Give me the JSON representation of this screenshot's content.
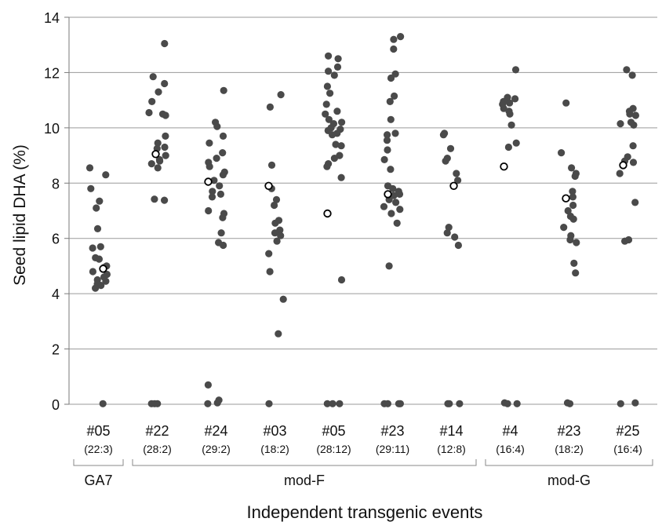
{
  "chart_data": {
    "type": "scatter",
    "title": "",
    "ylabel": "Seed lipid DHA (%)",
    "xlabel": "Independent transgenic events",
    "ylim": [
      0,
      14
    ],
    "yticks": [
      0,
      2,
      4,
      6,
      8,
      10,
      12,
      14
    ],
    "grid": "horizontal",
    "categories": [
      {
        "label": "#05",
        "sublabel": "(22:3)"
      },
      {
        "label": "#22",
        "sublabel": "(28:2)"
      },
      {
        "label": "#24",
        "sublabel": "(29:2)"
      },
      {
        "label": "#03",
        "sublabel": "(18:2)"
      },
      {
        "label": "#05",
        "sublabel": "(28:12)"
      },
      {
        "label": "#23",
        "sublabel": "(29:11)"
      },
      {
        "label": "#14",
        "sublabel": "(12:8)"
      },
      {
        "label": "#4",
        "sublabel": "(16:4)"
      },
      {
        "label": "#23",
        "sublabel": "(18:2)"
      },
      {
        "label": "#25",
        "sublabel": "(16:4)"
      }
    ],
    "groups": [
      {
        "label": "GA7",
        "range": [
          0,
          0
        ]
      },
      {
        "label": "mod-F",
        "range": [
          1,
          6
        ]
      },
      {
        "label": "mod-G",
        "range": [
          7,
          9
        ]
      }
    ],
    "series": [
      {
        "marker": "filled-circle",
        "color": "#4a4a4a",
        "points_by_category": [
          [
            8.55,
            8.3,
            7.8,
            7.35,
            7.1,
            6.35,
            5.7,
            5.65,
            5.3,
            5.25,
            5.0,
            4.95,
            4.8,
            4.7,
            4.6,
            4.5,
            4.45,
            4.35,
            4.3,
            4.2,
            0.02
          ],
          [
            13.05,
            11.85,
            11.6,
            11.3,
            10.95,
            10.55,
            10.5,
            10.45,
            9.7,
            9.45,
            9.3,
            9.25,
            9.0,
            8.85,
            8.8,
            8.7,
            8.55,
            7.42,
            7.38,
            0.02,
            0.02,
            0.02
          ],
          [
            11.35,
            10.2,
            10.05,
            9.7,
            9.45,
            9.1,
            8.9,
            8.75,
            8.6,
            8.4,
            8.3,
            8.1,
            7.9,
            7.7,
            7.6,
            7.5,
            7.0,
            6.9,
            6.75,
            6.2,
            5.85,
            5.75,
            0.7,
            0.15,
            0.05,
            0.02
          ],
          [
            11.2,
            10.75,
            8.65,
            7.8,
            7.4,
            7.2,
            6.65,
            6.55,
            6.3,
            6.2,
            6.1,
            5.9,
            5.45,
            4.8,
            3.8,
            2.55,
            0.02
          ],
          [
            12.6,
            12.5,
            12.2,
            12.05,
            11.9,
            11.5,
            11.25,
            10.85,
            10.6,
            10.5,
            10.3,
            10.2,
            10.15,
            10.0,
            9.95,
            9.9,
            9.8,
            9.75,
            9.4,
            9.35,
            9.0,
            8.9,
            8.7,
            8.6,
            8.2,
            4.5,
            0.02,
            0.02,
            0.02
          ],
          [
            13.3,
            13.2,
            12.85,
            11.95,
            11.8,
            11.15,
            10.95,
            10.3,
            9.8,
            9.75,
            9.55,
            9.2,
            8.85,
            8.5,
            7.9,
            7.8,
            7.7,
            7.6,
            7.55,
            7.4,
            7.3,
            7.15,
            7.05,
            6.9,
            6.55,
            5.0,
            0.02,
            0.02,
            0.02,
            0.02
          ],
          [
            9.8,
            9.75,
            9.25,
            8.9,
            8.8,
            8.35,
            8.1,
            6.4,
            6.2,
            6.05,
            5.75,
            0.02,
            0.02,
            0.02
          ],
          [
            12.1,
            11.1,
            11.05,
            10.95,
            10.9,
            10.85,
            10.7,
            10.6,
            10.5,
            10.1,
            9.45,
            9.3,
            0.05,
            0.02,
            0.02
          ],
          [
            10.9,
            9.1,
            8.55,
            8.35,
            8.25,
            7.7,
            7.5,
            7.2,
            7.0,
            6.8,
            6.7,
            6.4,
            6.1,
            5.95,
            5.85,
            5.1,
            4.75,
            0.05,
            0.02
          ],
          [
            12.1,
            11.9,
            10.7,
            10.6,
            10.5,
            10.45,
            10.2,
            10.15,
            10.1,
            9.35,
            8.95,
            8.8,
            8.75,
            8.35,
            7.3,
            5.95,
            5.9,
            0.05,
            0.02
          ]
        ]
      },
      {
        "marker": "open-circle",
        "color": "#000000",
        "values": [
          4.9,
          9.05,
          8.05,
          7.9,
          6.9,
          7.6,
          7.9,
          8.6,
          7.45,
          8.65
        ]
      }
    ]
  }
}
